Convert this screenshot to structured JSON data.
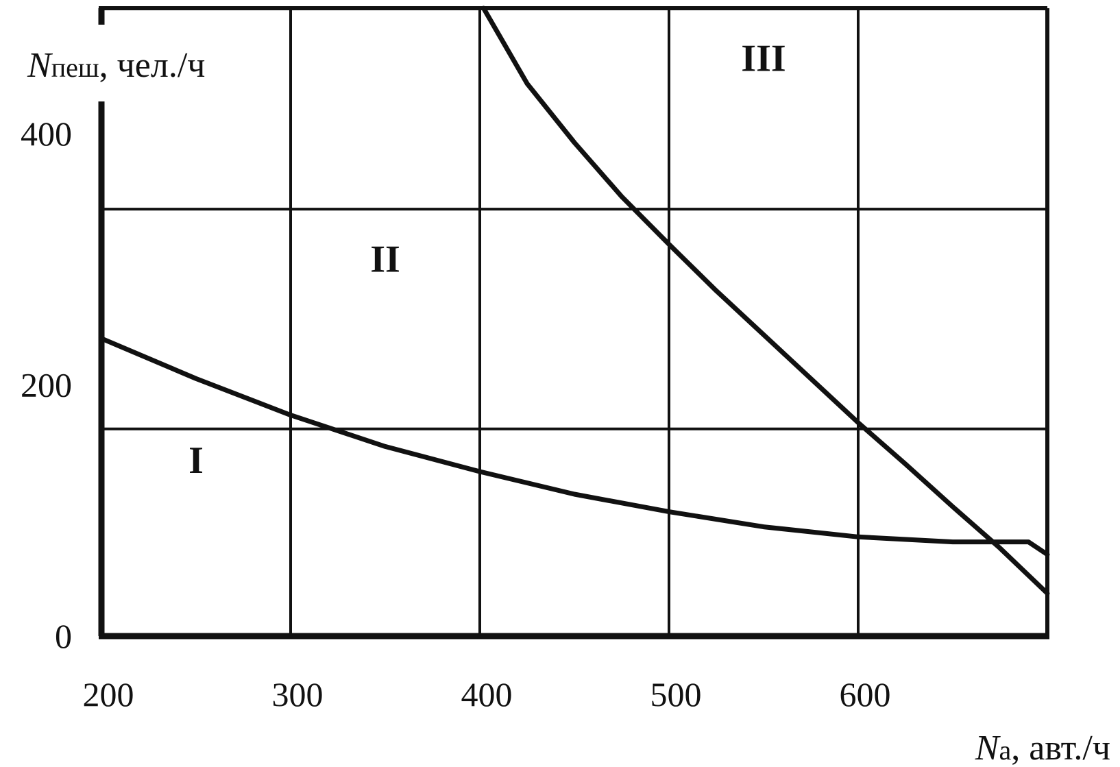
{
  "chart_data": {
    "type": "line",
    "title": "",
    "xlabel": {
      "symbol": "N",
      "subscript": "а",
      "unit": ", авт./ч"
    },
    "ylabel": {
      "symbol": "N",
      "subscript": "пеш",
      "unit": ", чел./ч"
    },
    "xlim": [
      200,
      700
    ],
    "ylim": [
      0,
      500
    ],
    "x_ticks": [
      "200",
      "300",
      "400",
      "500",
      "600"
    ],
    "y_ticks": [
      "0",
      "200",
      "400"
    ],
    "grid": true,
    "series": [
      {
        "x": [
          200,
          250,
          300,
          350,
          400,
          450,
          500,
          550,
          600,
          650,
          690,
          700
        ],
        "y": [
          237,
          205,
          176,
          151,
          131,
          113,
          99,
          87,
          79,
          75,
          75,
          65
        ]
      },
      {
        "x": [
          402,
          425,
          450,
          475,
          500,
          525,
          550,
          575,
          600,
          625,
          650,
          675,
          700
        ],
        "y": [
          500,
          440,
          393,
          350,
          312,
          275,
          240,
          205,
          170,
          137,
          103,
          70,
          34
        ]
      }
    ],
    "zones": [
      {
        "label": "I",
        "x": 250,
        "y": 130
      },
      {
        "label": "II",
        "x": 350,
        "y": 290
      },
      {
        "label": "III",
        "x": 550,
        "y": 450
      }
    ]
  }
}
